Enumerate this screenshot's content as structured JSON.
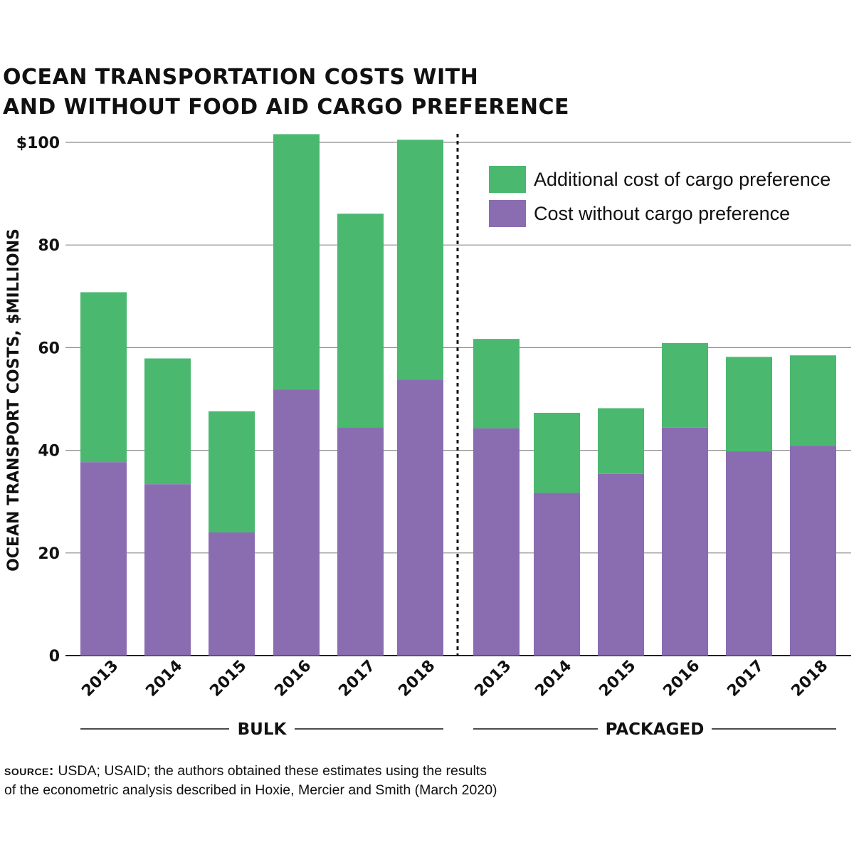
{
  "title": {
    "line1": "OCEAN TRANSPORTATION COSTS WITH",
    "line2": "AND WITHOUT FOOD AID CARGO PREFERENCE"
  },
  "chart_data": {
    "type": "bar",
    "stacked": true,
    "ylabel": "OCEAN TRANSPORT COSTS, $MILLIONS",
    "ylim": [
      0,
      100
    ],
    "y_ticks": [
      0,
      20,
      40,
      60,
      80,
      100
    ],
    "y_tick_labels": [
      "0",
      "20",
      "40",
      "60",
      "80",
      "$100"
    ],
    "grid": true,
    "legend_position": "top-right",
    "groups": [
      {
        "label": "BULK",
        "categories": [
          "2013",
          "2014",
          "2015",
          "2016",
          "2017",
          "2018"
        ]
      },
      {
        "label": "PACKAGED",
        "categories": [
          "2013",
          "2014",
          "2015",
          "2016",
          "2017",
          "2018"
        ]
      }
    ],
    "series": [
      {
        "name": "Cost without cargo preference",
        "color": "#8a6db1",
        "values": [
          37.7,
          33.4,
          24.0,
          51.8,
          44.5,
          53.8,
          44.3,
          31.7,
          35.4,
          44.4,
          39.8,
          40.9
        ]
      },
      {
        "name": "Additional cost of cargo preference",
        "color": "#4bb870",
        "values": [
          33.1,
          24.5,
          23.6,
          49.8,
          41.6,
          46.7,
          17.4,
          15.6,
          12.8,
          16.5,
          18.4,
          17.6
        ]
      }
    ]
  },
  "source": {
    "label": "source:",
    "line1": "USDA; USAID; the authors obtained these estimates using the results",
    "line2": "of the econometric analysis described in Hoxie, Mercier and Smith (March 2020)"
  }
}
